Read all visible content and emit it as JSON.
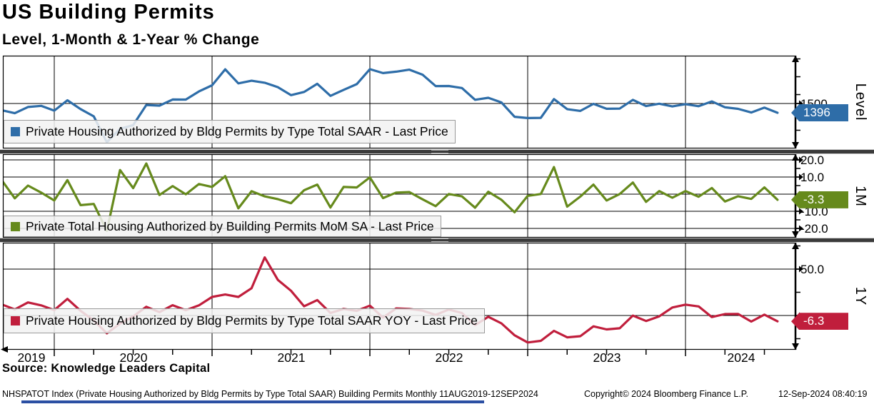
{
  "header": {
    "title": "US Building Permits",
    "subtitle": "Level, 1-Month & 1-Year % Change"
  },
  "source_line": "Source: Knowledge Leaders Capital",
  "footer": {
    "description": "NHSPATOT Index (Private Housing Authorized by Bldg Permits by Type Total SAAR) Building Permits  Monthly 11AUG2019-12SEP2024",
    "copyright": "Copyright© 2024 Bloomberg Finance L.P.",
    "timestamp": "12-Sep-2024 08:40:19"
  },
  "x_axis": {
    "year_labels": [
      "2019",
      "2020",
      "2021",
      "2022",
      "2023",
      "2024"
    ],
    "range": "11AUG2019 - 12SEP2024",
    "frequency": "Monthly"
  },
  "chart_data": [
    {
      "type": "line",
      "panel": "level",
      "legend": "Private Housing Authorized by Bldg Permits by Type Total SAAR - Last Price",
      "axis_label": "Level",
      "color": "#2e6da8",
      "last_price": "1396",
      "last_value": 1396,
      "ylim": [
        996,
        2036
      ],
      "grid": "horizontal line at 1500, vertical lines at each year",
      "y_ticks": [
        {
          "value": 1500,
          "label": "1500"
        }
      ],
      "x": {
        "start": "2019-08",
        "end": "2024-07",
        "freq": "monthly"
      },
      "values": [
        1425,
        1391,
        1461,
        1474,
        1420,
        1536,
        1438,
        1356,
        1066,
        1216,
        1258,
        1483,
        1476,
        1545,
        1544,
        1635,
        1704,
        1883,
        1726,
        1755,
        1733,
        1683,
        1594,
        1630,
        1721,
        1586,
        1653,
        1717,
        1885,
        1841,
        1857,
        1879,
        1823,
        1695,
        1696,
        1674,
        1542,
        1564,
        1512,
        1351,
        1337,
        1339,
        1550,
        1437,
        1417,
        1496,
        1441,
        1443,
        1541,
        1471,
        1498,
        1467,
        1493,
        1470,
        1523,
        1458,
        1440,
        1399,
        1454,
        1396
      ]
    },
    {
      "type": "line",
      "panel": "1-month-percent-change",
      "legend": "Private Total Housing Authorized by Building Permits MoM SA - Last Price",
      "axis_label": "1M",
      "color": "#668a1c",
      "last_price": "-3.3",
      "last_value": -3.3,
      "ylim": [
        -25,
        23
      ],
      "grid": "horizontal lines at -20, -10, 0, 10, 20",
      "y_ticks": [
        {
          "value": 20,
          "label": "20.0"
        },
        {
          "value": 10,
          "label": "10.0"
        },
        {
          "value": -10,
          "label": "-10.0"
        },
        {
          "value": -20,
          "label": "-20.0"
        }
      ],
      "x": {
        "start": "2019-08",
        "end": "2024-07",
        "freq": "monthly"
      },
      "values": [
        8.2,
        -2.4,
        5.0,
        0.9,
        -3.7,
        8.2,
        -6.4,
        -5.7,
        -21.4,
        14.1,
        3.5,
        17.9,
        -0.5,
        4.7,
        -0.1,
        5.9,
        4.2,
        10.5,
        -8.3,
        1.7,
        -1.3,
        -2.9,
        -5.3,
        2.3,
        5.6,
        -7.8,
        4.2,
        3.9,
        9.8,
        -2.3,
        0.9,
        1.2,
        -3.0,
        -7.0,
        0.1,
        -1.3,
        -7.9,
        1.4,
        -3.3,
        -10.6,
        -1.0,
        0.1,
        15.8,
        -7.3,
        -1.4,
        5.6,
        -3.7,
        0.1,
        6.8,
        -4.5,
        1.8,
        -2.1,
        1.8,
        -1.5,
        3.6,
        -4.3,
        -1.2,
        -2.8,
        3.9,
        -3.3
      ]
    },
    {
      "type": "line",
      "panel": "1-year-percent-change",
      "legend": "Private Housing Authorized by Bldg Permits by Type Total SAAR YOY - Last Price",
      "axis_label": "1Y",
      "color": "#c01e3c",
      "last_price": "-6.3",
      "last_value": -6.3,
      "ylim": [
        -37,
        78
      ],
      "grid": "horizontal lines at 0 and 50",
      "y_ticks": [
        {
          "value": 50,
          "label": "50.0"
        }
      ],
      "x": {
        "start": "2019-08",
        "end": "2024-07",
        "freq": "monthly"
      },
      "values": [
        12.0,
        6.5,
        14.1,
        10.9,
        5.8,
        17.9,
        5.1,
        -5.3,
        -19.2,
        -8.8,
        -1.0,
        9.4,
        3.6,
        11.1,
        5.7,
        10.9,
        20.0,
        22.6,
        20.0,
        29.4,
        62.6,
        38.4,
        26.7,
        9.9,
        16.6,
        2.7,
        7.1,
        5.0,
        10.6,
        -2.2,
        7.6,
        7.1,
        5.2,
        0.7,
        6.4,
        2.7,
        -10.4,
        -1.4,
        -8.5,
        -21.3,
        -29.1,
        -27.3,
        -16.5,
        -23.5,
        -22.3,
        -11.7,
        -15.0,
        -13.8,
        -0.1,
        -5.9,
        -0.9,
        8.6,
        11.7,
        9.8,
        -1.7,
        1.5,
        1.6,
        -6.5,
        0.9,
        -6.3
      ]
    }
  ],
  "chart_months": [
    "2019-08",
    "2019-09",
    "2019-10",
    "2019-11",
    "2019-12",
    "2020-01",
    "2020-02",
    "2020-03",
    "2020-04",
    "2020-05",
    "2020-06",
    "2020-07",
    "2020-08",
    "2020-09",
    "2020-10",
    "2020-11",
    "2020-12",
    "2021-01",
    "2021-02",
    "2021-03",
    "2021-04",
    "2021-05",
    "2021-06",
    "2021-07",
    "2021-08",
    "2021-09",
    "2021-10",
    "2021-11",
    "2021-12",
    "2022-01",
    "2022-02",
    "2022-03",
    "2022-04",
    "2022-05",
    "2022-06",
    "2022-07",
    "2022-08",
    "2022-09",
    "2022-10",
    "2022-11",
    "2022-12",
    "2023-01",
    "2023-02",
    "2023-03",
    "2023-04",
    "2023-05",
    "2023-06",
    "2023-07",
    "2023-08",
    "2023-09",
    "2023-10",
    "2023-11",
    "2023-12",
    "2024-01",
    "2024-02",
    "2024-03",
    "2024-04",
    "2024-05",
    "2024-06",
    "2024-07"
  ]
}
